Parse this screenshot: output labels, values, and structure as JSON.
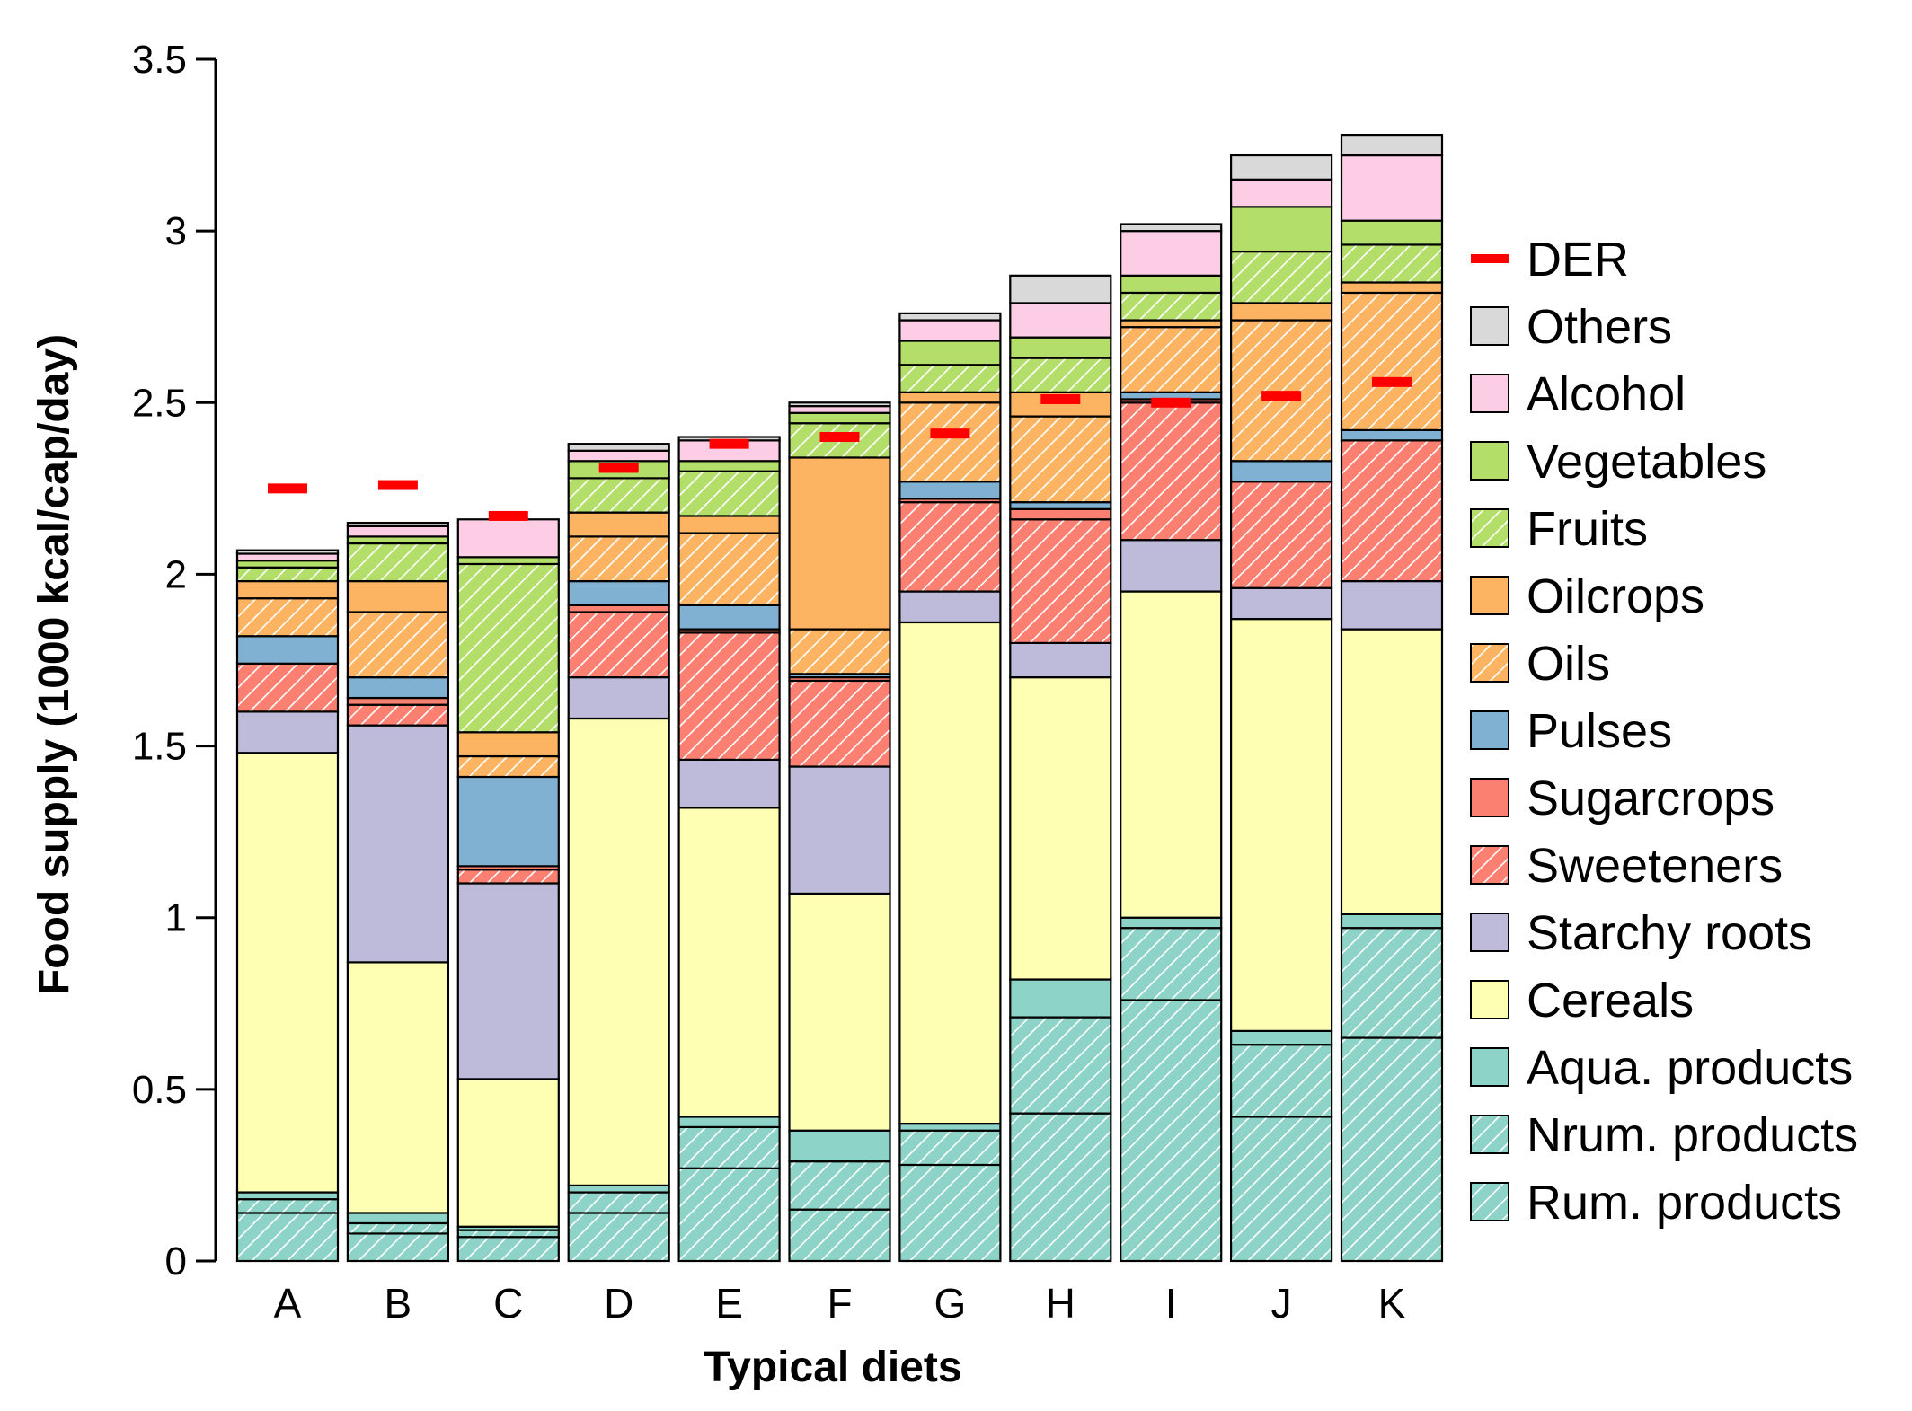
{
  "chart_data": {
    "type": "bar",
    "stacked": true,
    "title": "",
    "xlabel": "Typical diets",
    "ylabel": "Food supply (1000 kcal/cap/day)",
    "ylim": [
      0,
      3.5
    ],
    "yticks": [
      "0",
      "0.5",
      "1",
      "1.5",
      "2",
      "2.5",
      "3",
      "3.5"
    ],
    "grid": false,
    "legend_position": "right",
    "categories": [
      "A",
      "B",
      "C",
      "D",
      "E",
      "F",
      "G",
      "H",
      "I",
      "J",
      "K"
    ],
    "series": [
      {
        "name": "Rum. products",
        "color": "#8dd3c7",
        "hatch": true,
        "values": [
          0.14,
          0.08,
          0.07,
          0.14,
          0.27,
          0.15,
          0.28,
          0.43,
          0.76,
          0.42,
          0.65
        ]
      },
      {
        "name": "Nrum. products",
        "color": "#8dd3c7",
        "hatch": true,
        "values": [
          0.04,
          0.03,
          0.02,
          0.06,
          0.12,
          0.14,
          0.1,
          0.28,
          0.21,
          0.21,
          0.32
        ]
      },
      {
        "name": "Aqua. products",
        "color": "#8dd3c7",
        "hatch": false,
        "values": [
          0.02,
          0.03,
          0.01,
          0.02,
          0.03,
          0.09,
          0.02,
          0.11,
          0.03,
          0.04,
          0.04
        ]
      },
      {
        "name": "Cereals",
        "color": "#ffffb3",
        "hatch": false,
        "values": [
          1.28,
          0.73,
          0.43,
          1.36,
          0.9,
          0.69,
          1.46,
          0.88,
          0.95,
          1.2,
          0.83
        ]
      },
      {
        "name": "Starchy roots",
        "color": "#bebada",
        "hatch": false,
        "values": [
          0.12,
          0.69,
          0.57,
          0.12,
          0.14,
          0.37,
          0.09,
          0.1,
          0.15,
          0.09,
          0.14
        ]
      },
      {
        "name": "Sweeteners",
        "color": "#fb8072",
        "hatch": true,
        "values": [
          0.14,
          0.06,
          0.04,
          0.19,
          0.37,
          0.25,
          0.26,
          0.36,
          0.4,
          0.31,
          0.41
        ]
      },
      {
        "name": "Sugarcrops",
        "color": "#fb8072",
        "hatch": false,
        "values": [
          0.0,
          0.02,
          0.01,
          0.02,
          0.01,
          0.01,
          0.01,
          0.03,
          0.01,
          0.0,
          0.0
        ]
      },
      {
        "name": "Pulses",
        "color": "#80b1d3",
        "hatch": false,
        "values": [
          0.08,
          0.06,
          0.26,
          0.07,
          0.07,
          0.01,
          0.05,
          0.02,
          0.02,
          0.06,
          0.03
        ]
      },
      {
        "name": "Oils",
        "color": "#fdb462",
        "hatch": true,
        "values": [
          0.11,
          0.19,
          0.06,
          0.13,
          0.21,
          0.13,
          0.23,
          0.25,
          0.19,
          0.41,
          0.4
        ]
      },
      {
        "name": "Oilcrops",
        "color": "#fdb462",
        "hatch": false,
        "values": [
          0.05,
          0.09,
          0.07,
          0.07,
          0.05,
          0.5,
          0.03,
          0.07,
          0.02,
          0.05,
          0.03
        ]
      },
      {
        "name": "Fruits",
        "color": "#b3de69",
        "hatch": true,
        "values": [
          0.04,
          0.11,
          0.49,
          0.1,
          0.13,
          0.1,
          0.08,
          0.1,
          0.08,
          0.15,
          0.11
        ]
      },
      {
        "name": "Vegetables",
        "color": "#b3de69",
        "hatch": false,
        "values": [
          0.02,
          0.02,
          0.02,
          0.05,
          0.03,
          0.03,
          0.07,
          0.06,
          0.05,
          0.13,
          0.07
        ]
      },
      {
        "name": "Alcohol",
        "color": "#fccde5",
        "hatch": false,
        "values": [
          0.02,
          0.03,
          0.11,
          0.03,
          0.06,
          0.02,
          0.06,
          0.1,
          0.13,
          0.08,
          0.19
        ]
      },
      {
        "name": "Others",
        "color": "#d9d9d9",
        "hatch": false,
        "values": [
          0.01,
          0.01,
          0.0,
          0.02,
          0.01,
          0.01,
          0.02,
          0.08,
          0.02,
          0.07,
          0.06
        ]
      }
    ],
    "der": {
      "name": "DER",
      "color": "#ff0000",
      "values": [
        2.25,
        2.26,
        2.17,
        2.31,
        2.38,
        2.4,
        2.41,
        2.51,
        2.5,
        2.52,
        2.56
      ]
    },
    "legend_order": [
      "DER",
      "Others",
      "Alcohol",
      "Vegetables",
      "Fruits",
      "Oilcrops",
      "Oils",
      "Pulses",
      "Sugarcrops",
      "Sweeteners",
      "Starchy roots",
      "Cereals",
      "Aqua. products",
      "Nrum. products",
      "Rum. products"
    ]
  }
}
